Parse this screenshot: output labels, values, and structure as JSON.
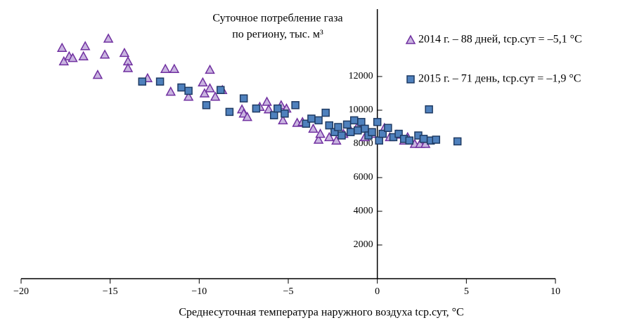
{
  "chart_data": {
    "type": "scatter",
    "ylabel": [
      "Суточное потребление газа",
      "по региону, тыс. м³"
    ],
    "xlabel": "Среднесуточная температура наружного воздуха tср.сут, °С",
    "xlim": [
      -20,
      10
    ],
    "ylim": [
      0,
      16000
    ],
    "xticks": [
      {
        "value": -20,
        "label": "−20"
      },
      {
        "value": -15,
        "label": "−15"
      },
      {
        "value": -10,
        "label": "−10"
      },
      {
        "value": -5,
        "label": "−5"
      },
      0,
      5,
      10
    ],
    "yticks": [
      2000,
      4000,
      6000,
      8000,
      10000,
      12000
    ],
    "series": [
      {
        "name": "2014 г. – 88 дней, tср.сут = –5,1 °С",
        "marker": "triangle",
        "color": "#7030a0",
        "fill": "#c9b4e0",
        "x": [
          -17.7,
          -17.6,
          -17.3,
          -17.1,
          -16.5,
          -16.4,
          -15.7,
          -15.3,
          -15.1,
          -14.2,
          -14.0,
          -14.0,
          -12.9,
          -11.9,
          -11.4,
          -11.6,
          -10.6,
          -9.8,
          -9.4,
          -9.7,
          -9.4,
          -9.1,
          -8.7,
          -7.6,
          -7.5,
          -7.3,
          -6.6,
          -6.2,
          -6.1,
          -5.4,
          -5.3,
          -5.1,
          -4.5,
          -4.2,
          -3.6,
          -3.3,
          -3.2,
          -2.7,
          -2.3,
          -1.9,
          -1.5,
          -1.1,
          -0.7,
          -0.3,
          0.4,
          0.7,
          1.1,
          1.5,
          1.7,
          2.1,
          2.4,
          2.7
        ],
        "y": [
          13700,
          12900,
          13200,
          13100,
          13200,
          13800,
          12100,
          13300,
          14250,
          13400,
          12900,
          12500,
          11900,
          12450,
          12450,
          11100,
          10800,
          11650,
          12400,
          11000,
          11300,
          10800,
          11200,
          10050,
          9800,
          9600,
          10200,
          10500,
          10050,
          10300,
          9400,
          10100,
          9250,
          9300,
          8900,
          8250,
          8600,
          8400,
          8200,
          8600,
          8800,
          9050,
          8400,
          8600,
          8950,
          8400,
          8550,
          8200,
          8400,
          8000,
          8000,
          8000
        ]
      },
      {
        "name": "2015 г. – 71 день, tср.сут = –1,9 °С",
        "marker": "square",
        "color": "#1f3b63",
        "fill": "#4f81bd",
        "x": [
          -13.2,
          -12.2,
          -11.0,
          -10.6,
          -9.6,
          -8.8,
          -8.3,
          -7.5,
          -6.8,
          -5.8,
          -5.6,
          -5.2,
          -4.6,
          -4.0,
          -3.7,
          -3.3,
          -2.9,
          -2.7,
          -2.4,
          -2.2,
          -2.0,
          -1.7,
          -1.5,
          -1.3,
          -1.1,
          -0.9,
          -0.7,
          -0.5,
          -0.3,
          0.0,
          0.1,
          0.3,
          0.6,
          0.9,
          1.2,
          1.5,
          1.8,
          2.3,
          2.6,
          2.9,
          3.0,
          3.3,
          4.5
        ],
        "y": [
          11700,
          11700,
          11350,
          11150,
          10300,
          11200,
          9900,
          10700,
          10100,
          9700,
          10100,
          9800,
          10300,
          9200,
          9500,
          9400,
          9850,
          9100,
          8700,
          9000,
          8500,
          9150,
          8700,
          9400,
          8800,
          9300,
          8900,
          8500,
          8700,
          9300,
          8200,
          8600,
          8950,
          8400,
          8600,
          8300,
          8200,
          8500,
          8300,
          10050,
          8200,
          8250,
          8150
        ]
      }
    ]
  }
}
